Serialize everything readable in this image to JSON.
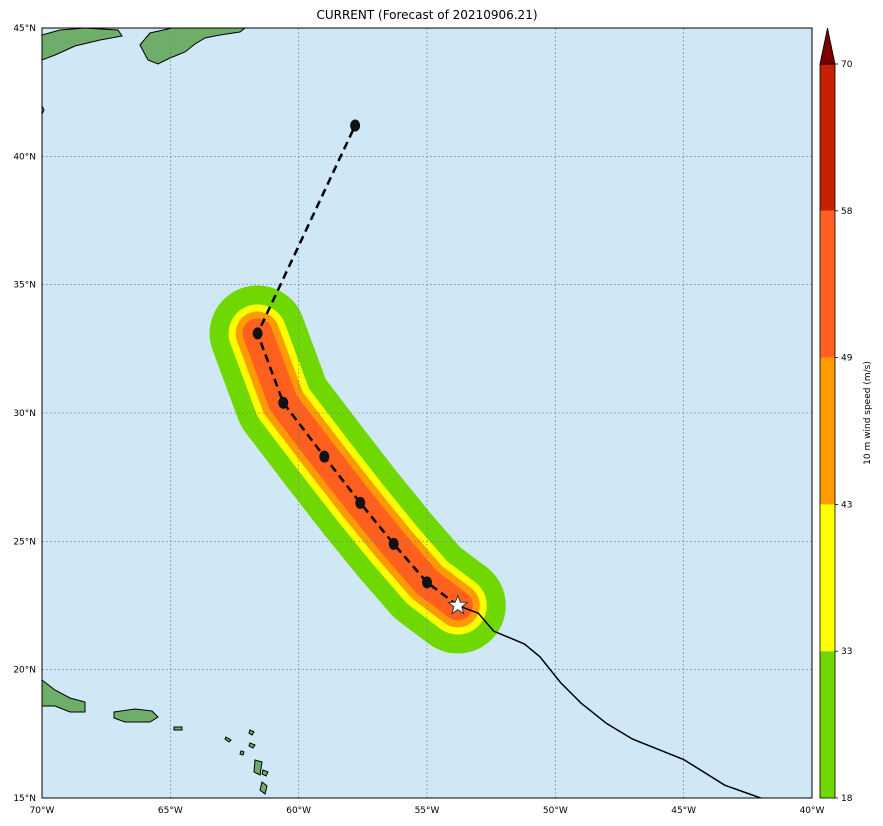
{
  "title": "CURRENT (Forecast of 20210906.21)",
  "map": {
    "lat_range": [
      15,
      45
    ],
    "lon_range": [
      -70,
      -40
    ],
    "lat_ticks": [
      "15°N",
      "20°N",
      "25°N",
      "30°N",
      "35°N",
      "40°N",
      "45°N"
    ],
    "lon_ticks": [
      "70°W",
      "65°W",
      "60°W",
      "55°W",
      "50°W",
      "45°W",
      "40°W"
    ],
    "ocean_color": "#d0e7f5",
    "land_color": "#6fae6a",
    "grid": true
  },
  "forecast_track": {
    "style": "dashed",
    "points": [
      {
        "lon": -53.8,
        "lat": 22.5,
        "marker": "star"
      },
      {
        "lon": -55.0,
        "lat": 23.4
      },
      {
        "lon": -56.3,
        "lat": 24.9
      },
      {
        "lon": -57.6,
        "lat": 26.5
      },
      {
        "lon": -59.0,
        "lat": 28.3
      },
      {
        "lon": -60.6,
        "lat": 30.4
      },
      {
        "lon": -61.6,
        "lat": 33.1
      },
      {
        "lon": -57.8,
        "lat": 41.2
      }
    ]
  },
  "past_track": {
    "style": "solid",
    "points": [
      {
        "lon": -53.8,
        "lat": 22.5
      },
      {
        "lon": -53.0,
        "lat": 22.2
      },
      {
        "lon": -52.4,
        "lat": 21.5
      },
      {
        "lon": -51.2,
        "lat": 21.0
      },
      {
        "lon": -50.6,
        "lat": 20.5
      },
      {
        "lon": -49.8,
        "lat": 19.5
      },
      {
        "lon": -49.0,
        "lat": 18.7
      },
      {
        "lon": -48.0,
        "lat": 17.9
      },
      {
        "lon": -47.0,
        "lat": 17.3
      },
      {
        "lon": -45.0,
        "lat": 16.5
      },
      {
        "lon": -43.4,
        "lat": 15.5
      },
      {
        "lon": -42.0,
        "lat": 15.0
      }
    ]
  },
  "wind_swath": {
    "bands": [
      {
        "min": 18,
        "color": "#6fd800"
      },
      {
        "min": 33,
        "color": "#ffff00"
      },
      {
        "min": 43,
        "color": "#ff9a00"
      },
      {
        "min": 49,
        "color": "#ff6020"
      }
    ]
  },
  "colorbar": {
    "label": "10 m wind speed (m/s)",
    "ticks": [
      "18",
      "33",
      "43",
      "49",
      "58",
      "70"
    ],
    "colors": [
      "#6fd800",
      "#ffff00",
      "#ff9a00",
      "#ff6020",
      "#c62000",
      "#7a0000"
    ]
  }
}
